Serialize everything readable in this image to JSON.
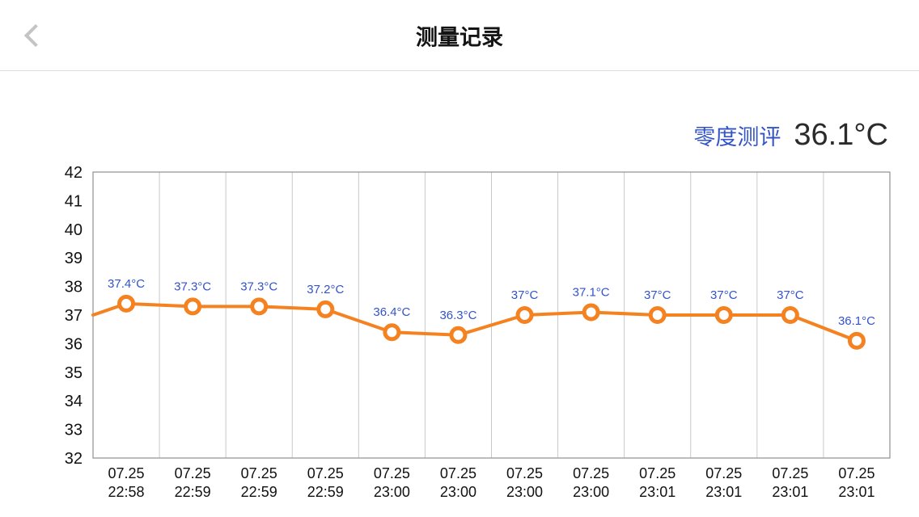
{
  "header": {
    "title": "测量记录",
    "back_icon": "chevron-left"
  },
  "reading": {
    "source_label": "零度测评",
    "value": "36.1°C"
  },
  "chart_data": {
    "type": "line",
    "title": "",
    "xlabel": "",
    "ylabel": "",
    "ylim": [
      32,
      42
    ],
    "yticks": [
      42,
      41,
      40,
      39,
      38,
      37,
      36,
      35,
      34,
      33,
      32
    ],
    "grid": "vertical-only",
    "legend_position": "none",
    "categories": [
      {
        "date": "07.25",
        "time": "22:58"
      },
      {
        "date": "07.25",
        "time": "22:59"
      },
      {
        "date": "07.25",
        "time": "22:59"
      },
      {
        "date": "07.25",
        "time": "22:59"
      },
      {
        "date": "07.25",
        "time": "23:00"
      },
      {
        "date": "07.25",
        "time": "23:00"
      },
      {
        "date": "07.25",
        "time": "23:00"
      },
      {
        "date": "07.25",
        "time": "23:00"
      },
      {
        "date": "07.25",
        "time": "23:01"
      },
      {
        "date": "07.25",
        "time": "23:01"
      },
      {
        "date": "07.25",
        "time": "23:01"
      },
      {
        "date": "07.25",
        "time": "23:01"
      }
    ],
    "values": [
      37.4,
      37.3,
      37.3,
      37.2,
      36.4,
      36.3,
      37,
      37.1,
      37,
      37,
      37,
      36.1
    ],
    "point_labels": [
      "37.4°C",
      "37.3°C",
      "37.3°C",
      "37.2°C",
      "36.4°C",
      "36.3°C",
      "37°C",
      "37.1°C",
      "37°C",
      "37°C",
      "37°C",
      "36.1°C"
    ],
    "leading_edge_value": 37.0,
    "colors": {
      "line": "#f58220",
      "point_fill": "#ffffff",
      "point_label": "#3353cb",
      "grid": "#c9c9c9",
      "axis": "#8f8f8f",
      "tick": "#111111"
    }
  }
}
